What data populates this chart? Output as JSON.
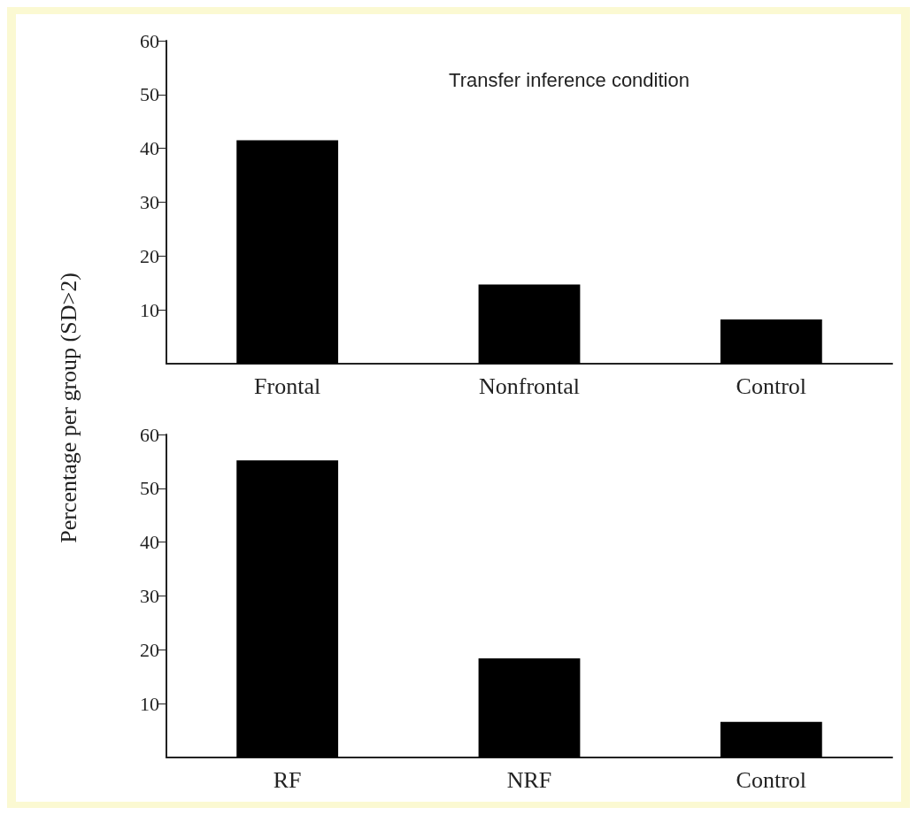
{
  "chart_data": [
    {
      "type": "bar",
      "title": "Transfer inference condition",
      "ylabel": "Percentage per group (SD>2)",
      "categories": [
        "Frontal",
        "Nonfrontal",
        "Control"
      ],
      "values": [
        41.5,
        14.7,
        8.2
      ],
      "color": "#000000",
      "ylim": [
        0,
        60
      ],
      "yticks": [
        10,
        20,
        30,
        40,
        50,
        60
      ],
      "grid": false
    },
    {
      "type": "bar",
      "categories": [
        "RF",
        "NRF",
        "Control"
      ],
      "values": [
        55.2,
        18.4,
        6.6
      ],
      "color": "#000000",
      "ylim": [
        0,
        60
      ],
      "yticks": [
        10,
        20,
        30,
        40,
        50,
        60
      ],
      "grid": false
    }
  ]
}
